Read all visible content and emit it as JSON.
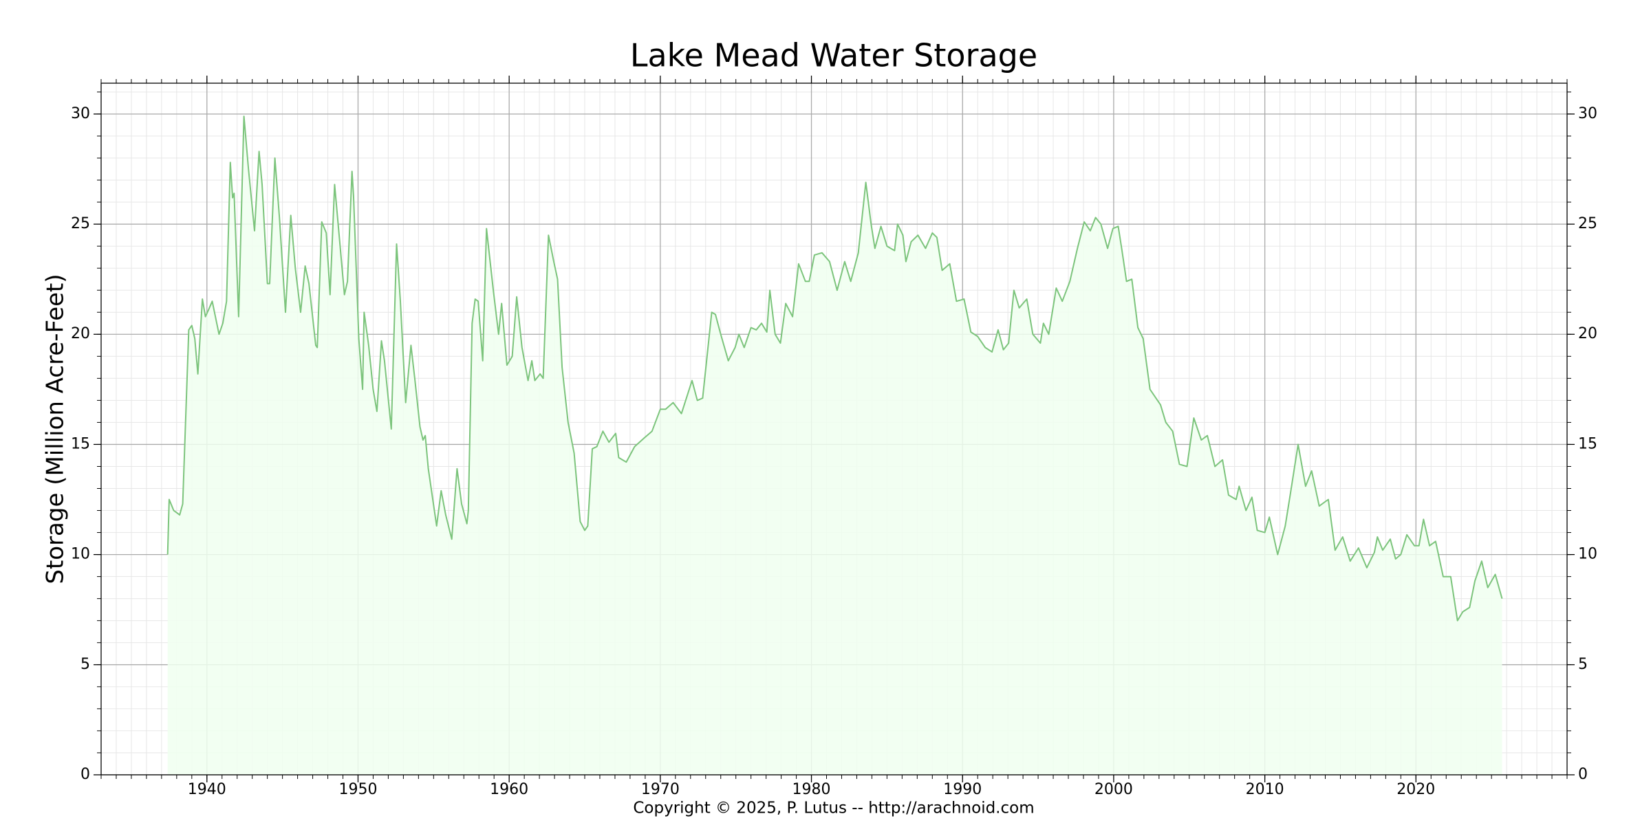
{
  "chart_data": {
    "type": "area",
    "title": "Lake Mead Water Storage",
    "ylabel": "Storage (Million Acre-Feet)",
    "footer": "Copyright © 2025, P. Lutus -- http://arachnoid.com",
    "color": "#7cc47c",
    "fill_color": "#f0fff0",
    "grid": true,
    "minor_grid": {
      "x": 1,
      "y": 1
    },
    "xlim": [
      1933,
      2030
    ],
    "ylim": [
      0,
      31.4
    ],
    "xticks": [
      1940,
      1950,
      1960,
      1970,
      1980,
      1990,
      2000,
      2010,
      2020
    ],
    "yticks": [
      0,
      5,
      10,
      15,
      20,
      25,
      30
    ],
    "x": [
      1937.4,
      1937.5,
      1937.8,
      1938.2,
      1938.4,
      1938.8,
      1939.0,
      1939.2,
      1939.4,
      1939.7,
      1939.9,
      1940.1,
      1940.35,
      1940.8,
      1941.05,
      1941.3,
      1941.55,
      1941.7,
      1941.8,
      1942.1,
      1942.45,
      1942.75,
      1943.15,
      1943.45,
      1943.65,
      1944.0,
      1944.15,
      1944.5,
      1944.8,
      1945.2,
      1945.55,
      1945.85,
      1946.2,
      1946.5,
      1946.75,
      1947.2,
      1947.3,
      1947.6,
      1947.9,
      1948.15,
      1948.45,
      1948.75,
      1949.1,
      1949.3,
      1949.6,
      1949.7,
      1950.05,
      1950.3,
      1950.4,
      1950.7,
      1951.0,
      1951.25,
      1951.55,
      1951.75,
      1952.2,
      1952.55,
      1952.8,
      1953.15,
      1953.5,
      1953.75,
      1954.1,
      1954.3,
      1954.45,
      1954.65,
      1955.2,
      1955.5,
      1955.8,
      1956.2,
      1956.55,
      1956.85,
      1957.2,
      1957.3,
      1957.55,
      1957.75,
      1957.95,
      1958.25,
      1958.5,
      1958.95,
      1959.3,
      1959.5,
      1959.85,
      1960.2,
      1960.5,
      1960.85,
      1961.25,
      1961.5,
      1961.7,
      1962.05,
      1962.25,
      1962.6,
      1962.95,
      1963.2,
      1963.5,
      1963.9,
      1964.3,
      1964.7,
      1965.0,
      1965.2,
      1965.5,
      1965.8,
      1966.2,
      1966.6,
      1967.05,
      1967.25,
      1967.75,
      1968.3,
      1968.95,
      1969.45,
      1970.0,
      1970.35,
      1970.85,
      1971.4,
      1972.1,
      1972.45,
      1972.8,
      1973.4,
      1973.65,
      1974.0,
      1974.5,
      1974.95,
      1975.2,
      1975.55,
      1976.0,
      1976.35,
      1976.7,
      1977.05,
      1977.25,
      1977.6,
      1977.95,
      1978.3,
      1978.75,
      1979.15,
      1979.6,
      1979.85,
      1980.2,
      1980.7,
      1981.2,
      1981.7,
      1982.2,
      1982.6,
      1983.1,
      1983.6,
      1983.95,
      1984.2,
      1984.6,
      1985.0,
      1985.5,
      1985.7,
      1986.05,
      1986.25,
      1986.6,
      1987.05,
      1987.55,
      1988.0,
      1988.3,
      1988.65,
      1989.15,
      1989.6,
      1990.1,
      1990.55,
      1991.0,
      1991.5,
      1991.95,
      1992.35,
      1992.7,
      1993.05,
      1993.4,
      1993.75,
      1994.25,
      1994.65,
      1995.15,
      1995.35,
      1995.7,
      1996.2,
      1996.6,
      1997.1,
      1997.6,
      1998.05,
      1998.45,
      1998.8,
      1999.15,
      1999.6,
      1999.95,
      2000.3,
      2000.55,
      2000.85,
      2001.2,
      2001.6,
      2001.95,
      2002.4,
      2003.1,
      2003.45,
      2003.9,
      2004.35,
      2004.85,
      2005.3,
      2005.8,
      2006.2,
      2006.7,
      2007.2,
      2007.6,
      2008.1,
      2008.3,
      2008.75,
      2009.15,
      2009.5,
      2010.0,
      2010.3,
      2010.85,
      2011.35,
      2011.7,
      2012.2,
      2012.7,
      2013.1,
      2013.6,
      2014.2,
      2014.65,
      2015.15,
      2015.65,
      2016.2,
      2016.75,
      2017.25,
      2017.45,
      2017.8,
      2018.3,
      2018.65,
      2019.0,
      2019.4,
      2019.9,
      2020.2,
      2020.5,
      2020.9,
      2021.3,
      2021.8,
      2022.3,
      2022.75,
      2023.1,
      2023.55,
      2023.9,
      2024.35,
      2024.75,
      2025.25,
      2025.7
    ],
    "values": [
      10.0,
      12.5,
      12.0,
      11.8,
      12.3,
      20.2,
      20.4,
      19.8,
      18.2,
      21.6,
      20.8,
      21.1,
      21.5,
      20.0,
      20.5,
      21.5,
      27.8,
      26.2,
      26.4,
      20.8,
      29.9,
      27.5,
      24.7,
      28.3,
      26.8,
      22.3,
      22.3,
      28.0,
      25.3,
      21.0,
      25.4,
      23.0,
      21.0,
      23.1,
      22.3,
      19.5,
      19.4,
      25.1,
      24.6,
      21.8,
      26.8,
      24.5,
      21.8,
      22.4,
      27.4,
      26.3,
      19.8,
      17.5,
      21.0,
      19.5,
      17.5,
      16.5,
      19.7,
      18.8,
      15.7,
      24.1,
      21.5,
      16.9,
      19.5,
      18.0,
      15.8,
      15.2,
      15.4,
      13.9,
      11.3,
      12.9,
      11.8,
      10.7,
      13.9,
      12.3,
      11.4,
      12.0,
      20.5,
      21.6,
      21.5,
      18.8,
      24.8,
      22.0,
      20.0,
      21.4,
      18.6,
      19.0,
      21.7,
      19.4,
      17.9,
      18.8,
      17.9,
      18.2,
      18.0,
      24.5,
      23.3,
      22.5,
      18.5,
      16.0,
      14.6,
      11.5,
      11.1,
      11.3,
      14.8,
      14.9,
      15.6,
      15.1,
      15.5,
      14.4,
      14.2,
      14.9,
      15.3,
      15.6,
      16.6,
      16.6,
      16.9,
      16.4,
      17.9,
      17.0,
      17.1,
      21.0,
      20.9,
      20.0,
      18.8,
      19.4,
      20.0,
      19.4,
      20.3,
      20.2,
      20.5,
      20.1,
      22.0,
      20.0,
      19.6,
      21.4,
      20.8,
      23.2,
      22.4,
      22.4,
      23.6,
      23.7,
      23.3,
      22.0,
      23.3,
      22.4,
      23.7,
      26.9,
      25.0,
      23.9,
      24.9,
      24.0,
      23.8,
      25.0,
      24.5,
      23.3,
      24.2,
      24.5,
      23.9,
      24.6,
      24.4,
      22.9,
      23.2,
      21.5,
      21.6,
      20.1,
      19.9,
      19.4,
      19.2,
      20.2,
      19.3,
      19.6,
      22.0,
      21.2,
      21.6,
      20.0,
      19.6,
      20.5,
      20.0,
      22.1,
      21.5,
      22.4,
      23.9,
      25.1,
      24.7,
      25.3,
      25.0,
      23.9,
      24.8,
      24.9,
      23.8,
      22.4,
      22.5,
      20.3,
      19.8,
      17.5,
      16.8,
      16.0,
      15.6,
      14.1,
      14.0,
      16.2,
      15.2,
      15.4,
      14.0,
      14.3,
      12.7,
      12.5,
      13.1,
      12.0,
      12.6,
      11.1,
      11.0,
      11.7,
      10.0,
      11.3,
      12.8,
      15.0,
      13.1,
      13.8,
      12.2,
      12.5,
      10.2,
      10.8,
      9.7,
      10.3,
      9.4,
      10.1,
      10.8,
      10.2,
      10.7,
      9.8,
      10.0,
      10.9,
      10.4,
      10.4,
      11.6,
      10.4,
      10.6,
      9.0,
      9.0,
      7.0,
      7.4,
      7.6,
      8.8,
      9.7,
      8.5,
      9.1,
      8.0
    ]
  }
}
